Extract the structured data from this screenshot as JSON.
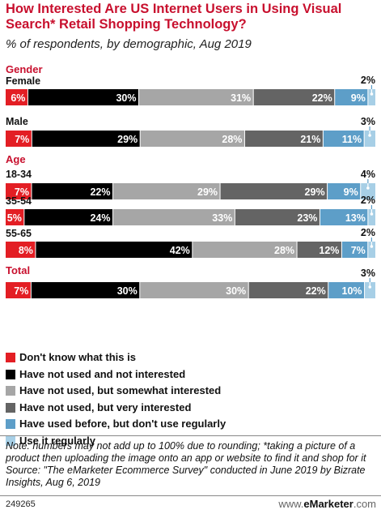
{
  "header": {
    "title": "How Interested Are US Internet Users in Using Visual Search* Retail Shopping Technology?",
    "subtitle": "% of respondents, by demographic, Aug 2019"
  },
  "chart_data": {
    "type": "bar",
    "orientation": "horizontal",
    "stacked": true,
    "normalized_to_percent": true,
    "groups": [
      {
        "label": "Gender",
        "rows": [
          "Female",
          "Male"
        ]
      },
      {
        "label": "Age",
        "rows": [
          "18-34",
          "35-54",
          "55-65"
        ]
      },
      {
        "label": "Total",
        "rows": [
          ""
        ]
      }
    ],
    "categories": [
      "Female",
      "Male",
      "18-34",
      "35-54",
      "55-65",
      "Total"
    ],
    "series": [
      {
        "name": "Don't know what this is",
        "color": "#e31e24",
        "values": [
          6,
          7,
          7,
          5,
          8,
          7
        ]
      },
      {
        "name": "Have not used and not interested",
        "color": "#000000",
        "values": [
          30,
          29,
          22,
          24,
          42,
          30
        ]
      },
      {
        "name": "Have not used, but somewhat interested",
        "color": "#a6a6a6",
        "values": [
          31,
          28,
          29,
          33,
          28,
          30
        ]
      },
      {
        "name": "Have not used, but very interested",
        "color": "#646464",
        "values": [
          22,
          21,
          29,
          23,
          12,
          22
        ]
      },
      {
        "name": "Have used before, but don't use regularly",
        "color": "#5d9ec8",
        "values": [
          9,
          11,
          9,
          13,
          7,
          10
        ]
      },
      {
        "name": "Use it regularly",
        "color": "#a7cfe6",
        "values": [
          2,
          3,
          4,
          2,
          2,
          3
        ]
      }
    ],
    "value_suffix": "%",
    "legend_position": "bottom-left",
    "grid": false
  },
  "footer": {
    "note": "Note: numbers may not add up to 100% due to rounding; *taking a picture of a product then uploading the image onto an app or website to find it and shop for it",
    "source": "Source: \"The eMarketer Ecommerce Survey\" conducted in June 2019 by Bizrate Insights, Aug 6, 2019",
    "chart_id": "249265",
    "brand_prefix": "www.",
    "brand_name": "eMarketer",
    "brand_suffix": ".com"
  }
}
